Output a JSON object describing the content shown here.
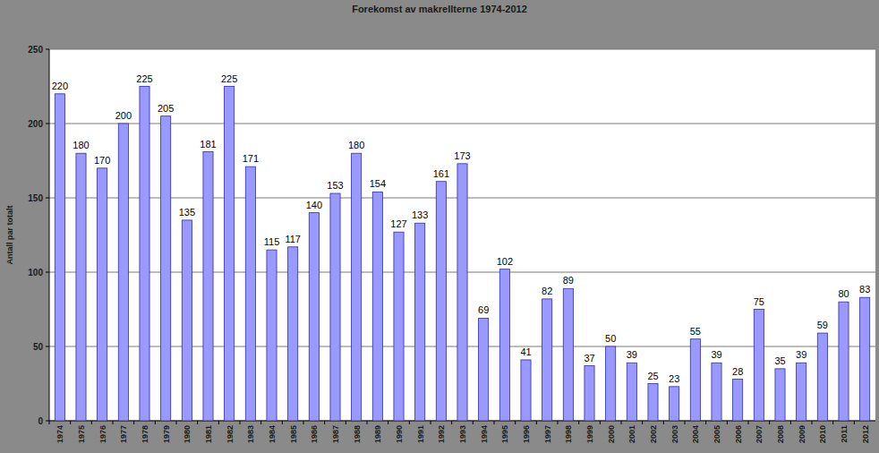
{
  "chart_data": {
    "type": "bar",
    "title": "Forekomst av makrellterne 1974-2012",
    "y_label": "Antall par totalt",
    "categories": [
      "1974",
      "1975",
      "1976",
      "1977",
      "1978",
      "1979",
      "1980",
      "1981",
      "1982",
      "1983",
      "1984",
      "1985",
      "1986",
      "1987",
      "1988",
      "1989",
      "1990",
      "1991",
      "1992",
      "1993",
      "1994",
      "1995",
      "1996",
      "1997",
      "1998",
      "1999",
      "2000",
      "2001",
      "2002",
      "2003",
      "2004",
      "2005",
      "2006",
      "2007",
      "2008",
      "2009",
      "2010",
      "2011",
      "2012"
    ],
    "values": [
      220,
      180,
      170,
      200,
      225,
      205,
      135,
      181,
      225,
      171,
      115,
      117,
      140,
      153,
      180,
      154,
      127,
      133,
      161,
      173,
      69,
      102,
      41,
      82,
      89,
      37,
      50,
      39,
      25,
      23,
      55,
      39,
      28,
      75,
      35,
      39,
      59,
      80,
      83
    ],
    "color": "#9999ff",
    "ylim": [
      0,
      250
    ],
    "yticks": [
      0,
      50,
      100,
      150,
      200,
      250
    ],
    "grid": true,
    "data_labels": true
  }
}
